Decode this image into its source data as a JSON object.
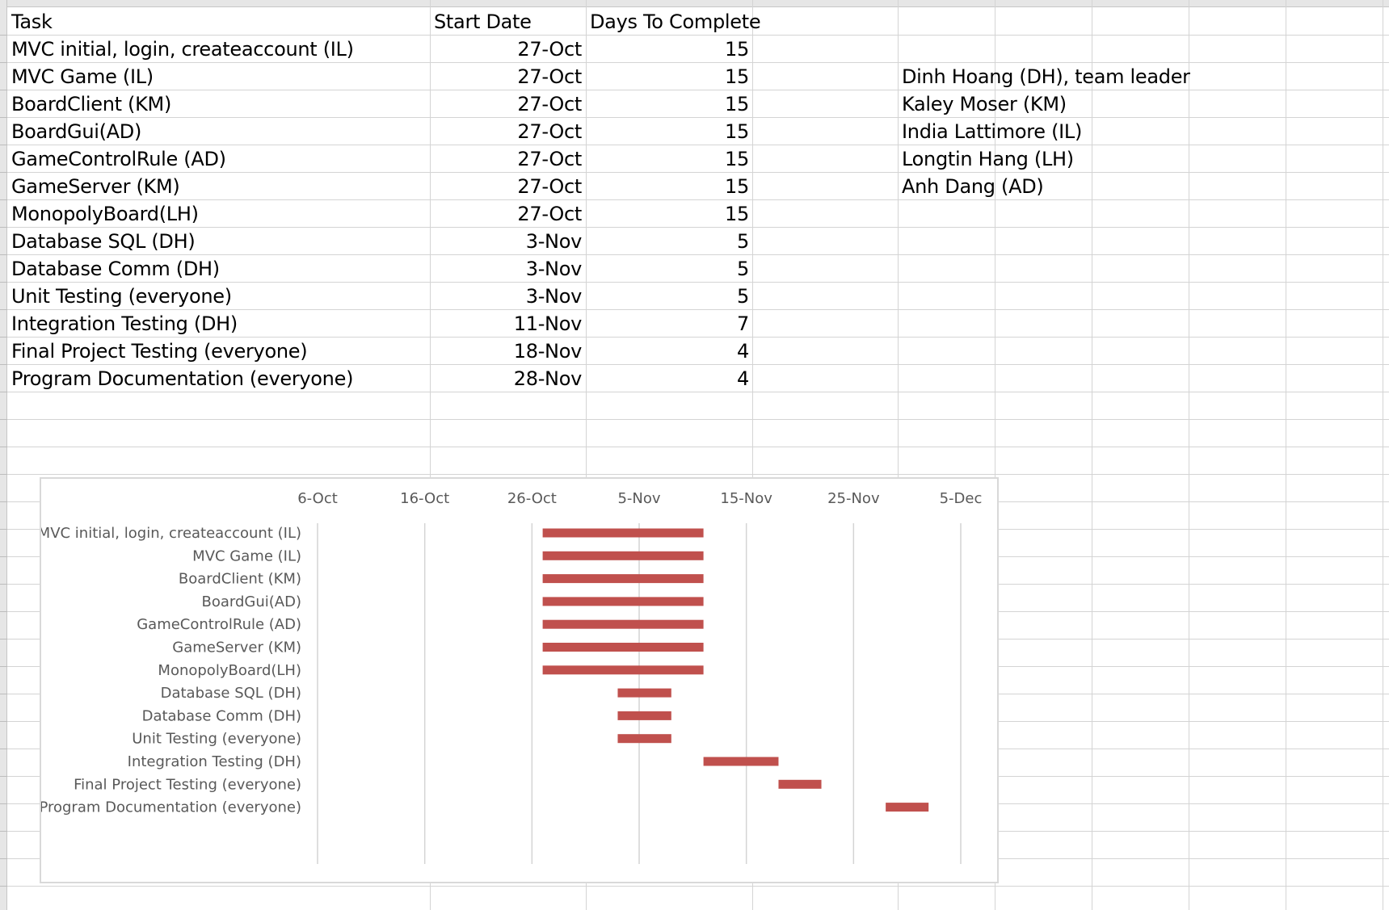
{
  "table": {
    "headers": {
      "task": "Task",
      "start": "Start Date",
      "days": "Days To Complete"
    },
    "rows": [
      {
        "task": "MVC initial, login, createaccount (IL)",
        "start": "27-Oct",
        "days": "15"
      },
      {
        "task": "MVC Game (IL)",
        "start": "27-Oct",
        "days": "15"
      },
      {
        "task": "BoardClient (KM)",
        "start": "27-Oct",
        "days": "15"
      },
      {
        "task": "BoardGui(AD)",
        "start": "27-Oct",
        "days": "15"
      },
      {
        "task": "GameControlRule (AD)",
        "start": "27-Oct",
        "days": "15"
      },
      {
        "task": "GameServer (KM)",
        "start": "27-Oct",
        "days": "15"
      },
      {
        "task": "MonopolyBoard(LH)",
        "start": "27-Oct",
        "days": "15"
      },
      {
        "task": "Database SQL (DH)",
        "start": "3-Nov",
        "days": "5"
      },
      {
        "task": "Database Comm (DH)",
        "start": "3-Nov",
        "days": "5"
      },
      {
        "task": "Unit Testing (everyone)",
        "start": "3-Nov",
        "days": "5"
      },
      {
        "task": "Integration Testing (DH)",
        "start": "11-Nov",
        "days": "7"
      },
      {
        "task": "Final Project Testing (everyone)",
        "start": "18-Nov",
        "days": "4"
      },
      {
        "task": "Program Documentation (everyone)",
        "start": "28-Nov",
        "days": "4"
      }
    ]
  },
  "team": [
    "Dinh Hoang (DH), team leader",
    "Kaley Moser (KM)",
    "India Lattimore (IL)",
    "Longtin Hang (LH)",
    "Anh Dang (AD)"
  ],
  "colors": {
    "bar": "#c0504d",
    "gridline": "#d4d4d4",
    "axis_text": "#595959"
  },
  "chart_data": {
    "type": "bar",
    "orientation": "horizontal",
    "title": "",
    "xlabel": "",
    "ylabel": "",
    "x_axis_position": "top",
    "x_tick_labels": [
      "6-Oct",
      "16-Oct",
      "26-Oct",
      "5-Nov",
      "15-Nov",
      "25-Nov",
      "5-Dec"
    ],
    "x_ticks": [
      "2023-10-06",
      "2023-10-16",
      "2023-10-26",
      "2023-11-05",
      "2023-11-15",
      "2023-11-25",
      "2023-12-05"
    ],
    "xlim": [
      "2023-10-06",
      "2023-12-05"
    ],
    "grid": "vertical",
    "categories": [
      "MVC initial, login, createaccount (IL)",
      "MVC Game (IL)",
      "BoardClient (KM)",
      "BoardGui(AD)",
      "GameControlRule (AD)",
      "GameServer (KM)",
      "MonopolyBoard(LH)",
      "Database SQL (DH)",
      "Database Comm (DH)",
      "Unit Testing (everyone)",
      "Integration Testing (DH)",
      "Final Project Testing (everyone)",
      "Program Documentation (everyone)"
    ],
    "start": [
      "2023-10-27",
      "2023-10-27",
      "2023-10-27",
      "2023-10-27",
      "2023-10-27",
      "2023-10-27",
      "2023-10-27",
      "2023-11-03",
      "2023-11-03",
      "2023-11-03",
      "2023-11-11",
      "2023-11-18",
      "2023-11-28"
    ],
    "duration_days": [
      15,
      15,
      15,
      15,
      15,
      15,
      15,
      5,
      5,
      5,
      7,
      4,
      4
    ]
  }
}
